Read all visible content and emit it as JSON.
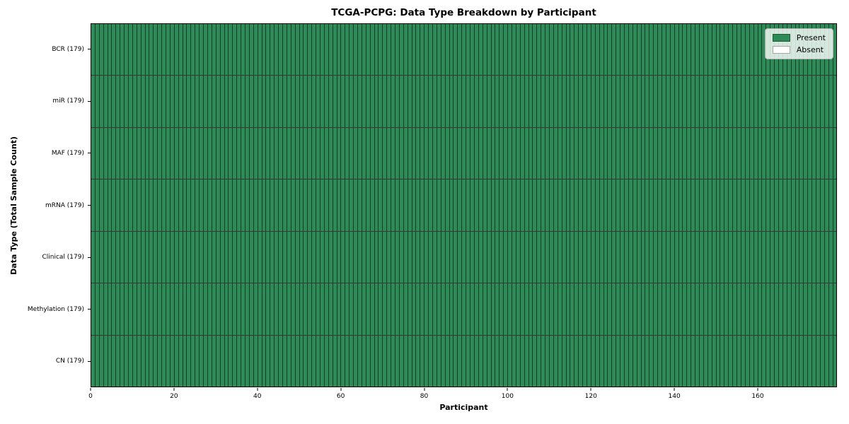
{
  "chart_data": {
    "type": "heatmap",
    "title": "TCGA-PCPG: Data Type Breakdown by Participant",
    "xlabel": "Participant",
    "ylabel": "Data Type (Total Sample Count)",
    "n_participants": 179,
    "x_range": [
      0,
      179
    ],
    "x_ticks": [
      0,
      20,
      40,
      60,
      80,
      100,
      120,
      140,
      160
    ],
    "rows": [
      {
        "label": "BCR (179)",
        "data_type": "BCR",
        "total_samples": 179,
        "present_count": 179
      },
      {
        "label": "miR (179)",
        "data_type": "miR",
        "total_samples": 179,
        "present_count": 179
      },
      {
        "label": "MAF (179)",
        "data_type": "MAF",
        "total_samples": 179,
        "present_count": 179
      },
      {
        "label": "mRNA (179)",
        "data_type": "mRNA",
        "total_samples": 179,
        "present_count": 179
      },
      {
        "label": "Clinical (179)",
        "data_type": "Clinical",
        "total_samples": 179,
        "present_count": 179
      },
      {
        "label": "Methylation (179)",
        "data_type": "Methylation",
        "total_samples": 179,
        "present_count": 179
      },
      {
        "label": "CN (179)",
        "data_type": "CN",
        "total_samples": 179,
        "present_count": 179
      }
    ],
    "legend": [
      {
        "label": "Present",
        "color": "#2e8b57"
      },
      {
        "label": "Absent",
        "color": "#ffffff"
      }
    ],
    "colors": {
      "present": "#2e8b57",
      "absent": "#ffffff",
      "edge": "#000000",
      "background": "#ffffff"
    },
    "legend_position": "upper right",
    "grid": "cell-borders"
  }
}
